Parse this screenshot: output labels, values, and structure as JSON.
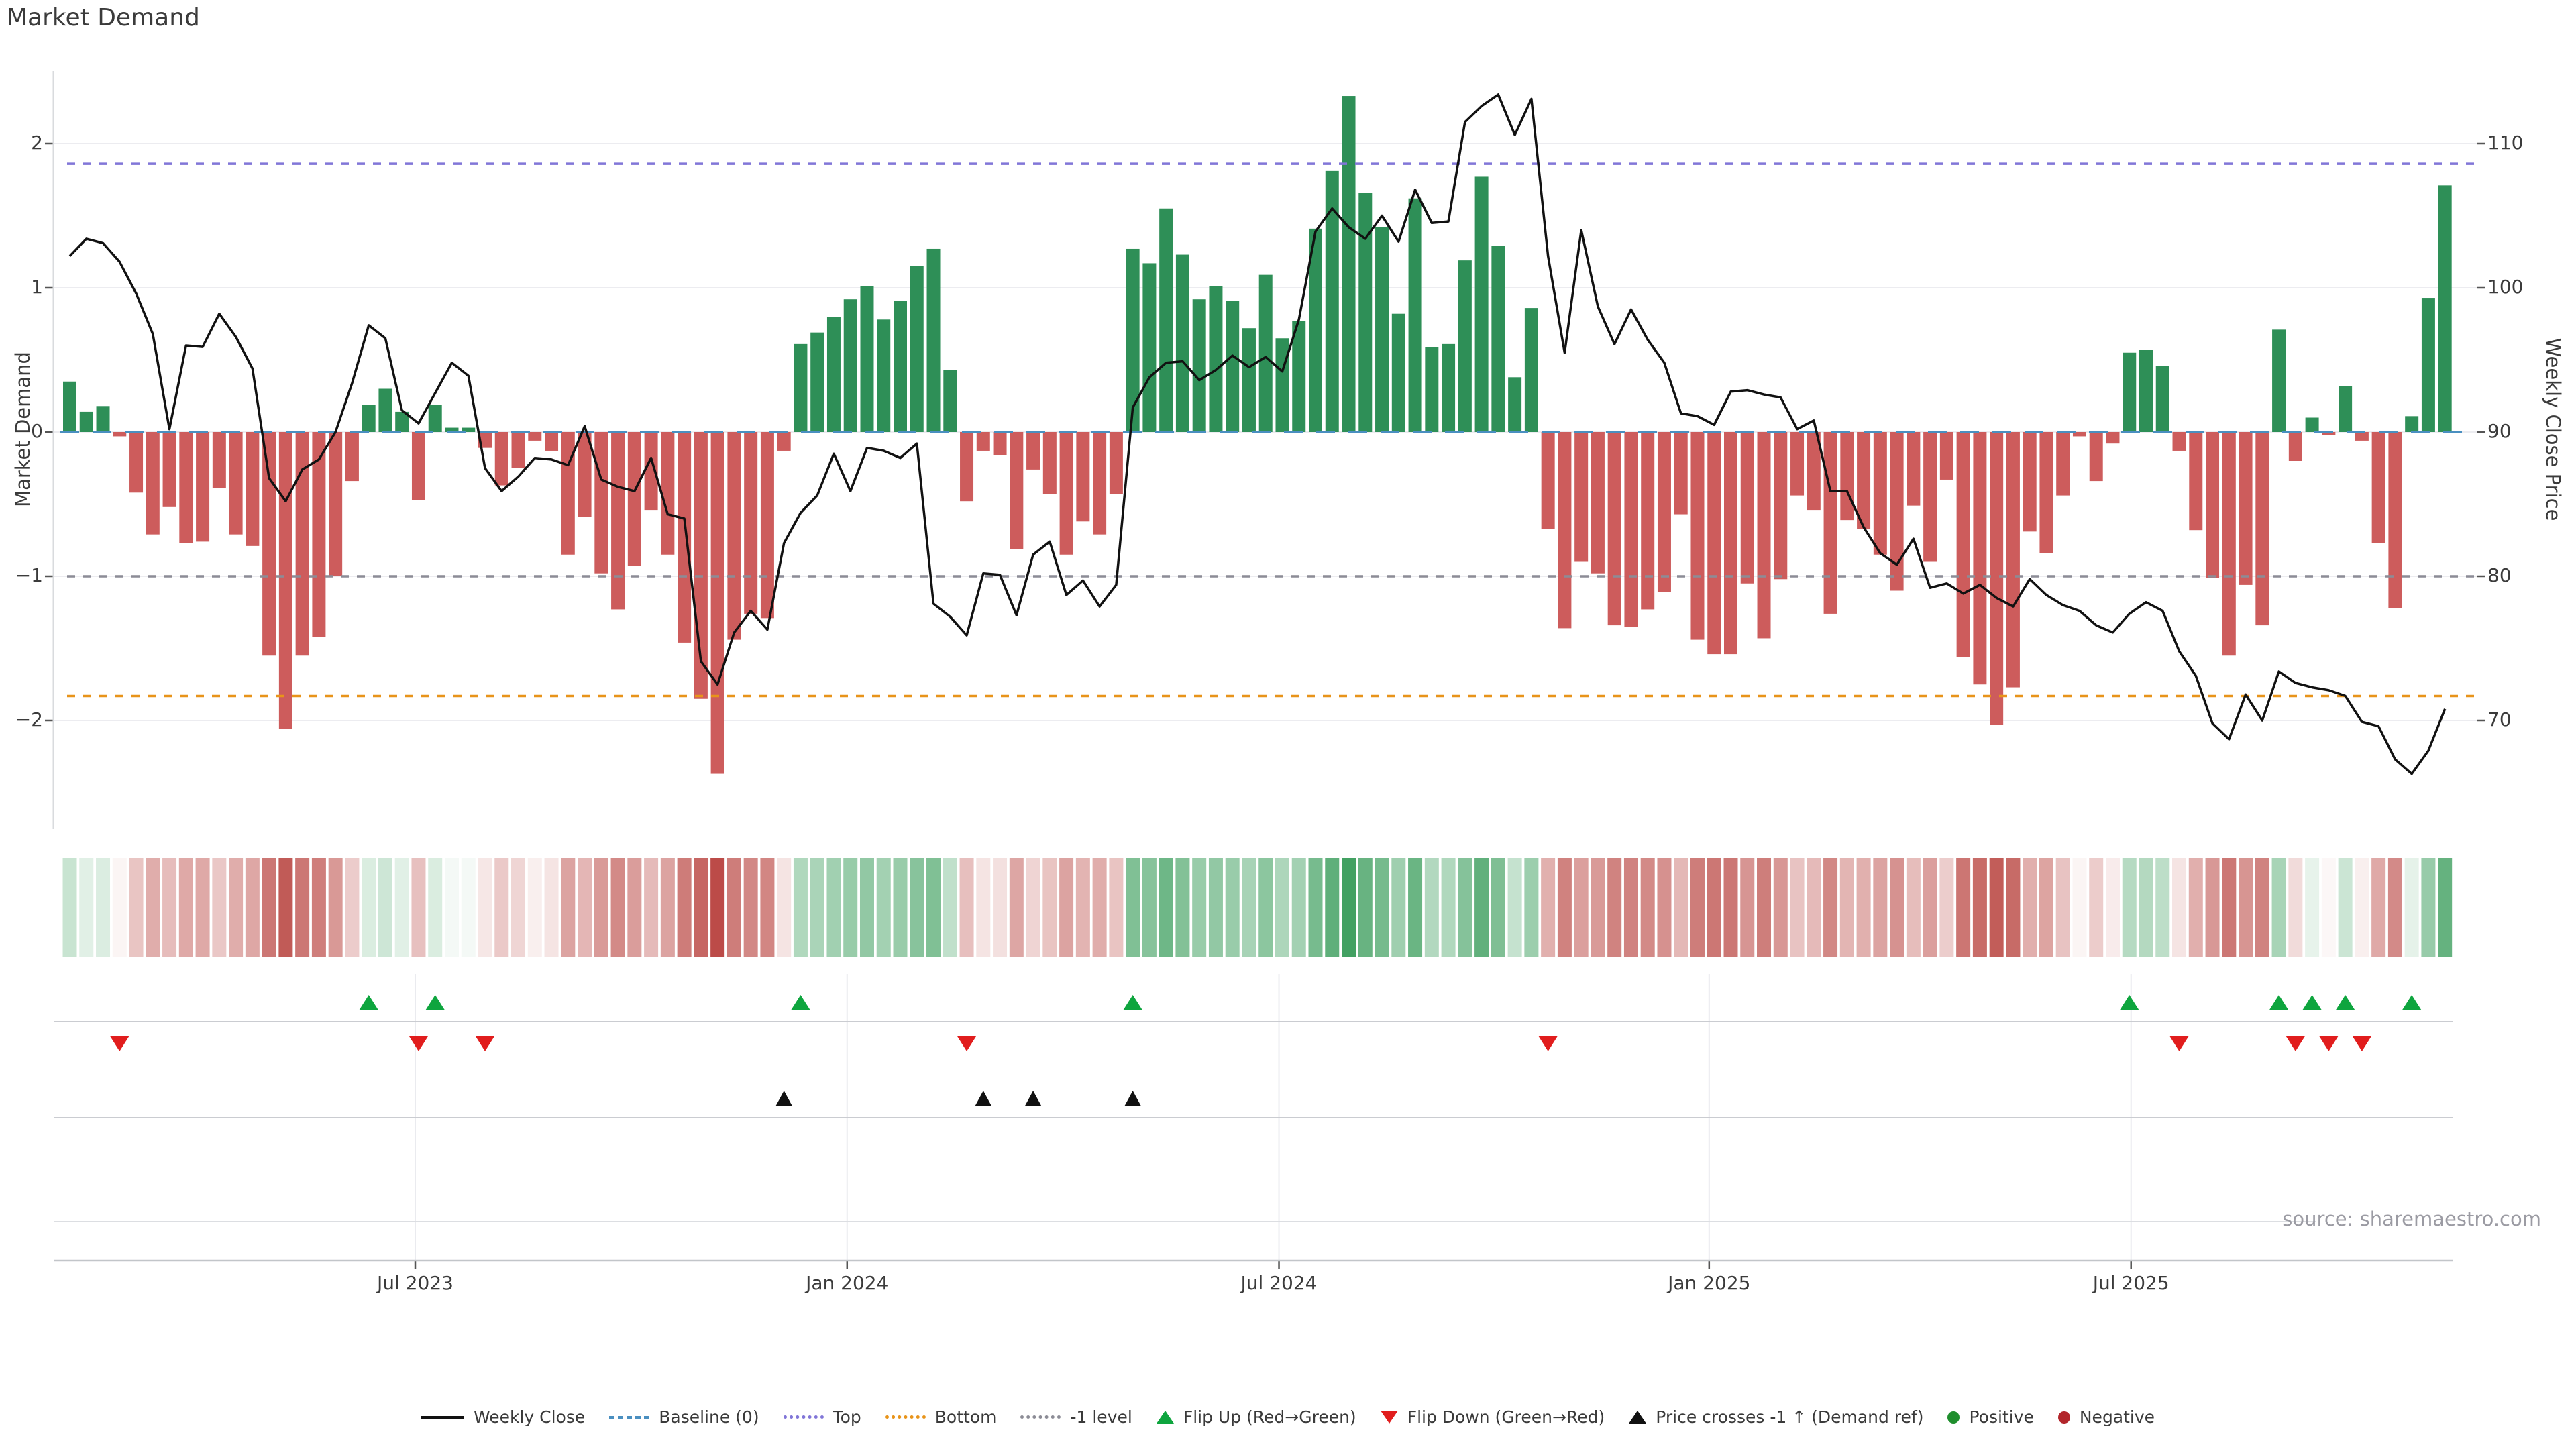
{
  "title": "Market Demand",
  "source": "source: sharemaestro.com",
  "axes": {
    "left": {
      "title": "Market Demand",
      "ticks": [
        "2",
        "1",
        "0",
        "−1",
        "−2"
      ],
      "tick_values": [
        2,
        1,
        0,
        -1,
        -2
      ]
    },
    "right": {
      "title": "Weekly Close Price",
      "ticks": [
        "110",
        "100",
        "90",
        "80",
        "70"
      ],
      "tick_values": [
        110,
        100,
        90,
        80,
        70
      ]
    },
    "x": {
      "ticks": [
        {
          "label": "Jul 2023",
          "week": 21.8
        },
        {
          "label": "Jan 2024",
          "week": 47.8
        },
        {
          "label": "Jul 2024",
          "week": 73.8
        },
        {
          "label": "Jan 2025",
          "week": 99.7
        },
        {
          "label": "Jul 2025",
          "week": 125.1
        }
      ]
    }
  },
  "legend": [
    {
      "label": "Weekly Close",
      "swatch": "line",
      "color": "#111111"
    },
    {
      "label": "Baseline (0)",
      "swatch": "dash",
      "color": "#4a8fc0"
    },
    {
      "label": "Top",
      "swatch": "dots",
      "color": "#8176d8"
    },
    {
      "label": "Bottom",
      "swatch": "dots",
      "color": "#e8941a"
    },
    {
      "label": "-1 level",
      "swatch": "dots",
      "color": "#8c8c96"
    },
    {
      "label": "Flip Up (Red→Green)",
      "swatch": "tri-up",
      "color": "#0ea53e"
    },
    {
      "label": "Flip Down (Green→Red)",
      "swatch": "tri-down",
      "color": "#e11d1d"
    },
    {
      "label": "Price crosses -1 ↑ (Demand ref)",
      "swatch": "tri-up",
      "color": "#111111"
    },
    {
      "label": "Positive",
      "swatch": "dot",
      "color": "#1f8e2d"
    },
    {
      "label": "Negative",
      "swatch": "dot",
      "color": "#b2252b"
    }
  ],
  "colors": {
    "bar_positive": "#2e8f57",
    "bar_negative": "#cd5c5c",
    "price_line": "#111111",
    "baseline": "#4a8fc0",
    "top_line": "#8176d8",
    "bottom_line": "#e8941a",
    "minus1_line": "#8c8c96",
    "flip_up": "#0ea53e",
    "flip_down": "#e11d1d",
    "price_cross": "#111111",
    "heat_green": "#3f9f5f",
    "heat_red": "#bb4a46",
    "grid": "#ececf0"
  },
  "chart_data": {
    "type": "bar+line",
    "title": "Market Demand",
    "ylabel_left": "Market Demand",
    "ylabel_right": "Weekly Close Price",
    "x_freq": "weekly",
    "start_date": "2023-02-06",
    "n_weeks": 144,
    "ylim_demand": [
      -2.7,
      2.5
    ],
    "ylim_price": [
      62.5,
      115
    ],
    "baseline": 0,
    "top_level": 1.86,
    "bottom_level": -1.83,
    "minus1_level": -1,
    "grid": "horizontal",
    "legend_position": "bottom-center",
    "demand": [
      0.35,
      0.14,
      0.18,
      -0.03,
      -0.42,
      -0.71,
      -0.52,
      -0.77,
      -0.76,
      -0.39,
      -0.71,
      -0.79,
      -1.55,
      -2.06,
      -1.55,
      -1.42,
      -1.0,
      -0.34,
      0.19,
      0.3,
      0.14,
      -0.47,
      0.19,
      0.03,
      0.03,
      -0.11,
      -0.37,
      -0.25,
      -0.06,
      -0.13,
      -0.85,
      -0.59,
      -0.98,
      -1.23,
      -0.93,
      -0.54,
      -0.85,
      -1.46,
      -1.85,
      -2.37,
      -1.44,
      -1.26,
      -1.29,
      -0.13,
      0.61,
      0.69,
      0.8,
      0.92,
      1.01,
      0.78,
      0.91,
      1.15,
      1.27,
      0.43,
      -0.48,
      -0.13,
      -0.16,
      -0.81,
      -0.26,
      -0.43,
      -0.85,
      -0.62,
      -0.71,
      -0.43,
      1.27,
      1.17,
      1.55,
      1.23,
      0.92,
      1.01,
      0.91,
      0.72,
      1.09,
      0.65,
      0.77,
      1.41,
      1.81,
      2.33,
      1.66,
      1.42,
      0.82,
      1.62,
      0.59,
      0.61,
      1.19,
      1.77,
      1.29,
      0.38,
      0.86,
      -0.67,
      -1.36,
      -0.9,
      -0.98,
      -1.34,
      -1.35,
      -1.23,
      -1.11,
      -0.57,
      -1.44,
      -1.54,
      -1.54,
      -1.05,
      -1.43,
      -1.02,
      -0.44,
      -0.54,
      -1.26,
      -0.61,
      -0.67,
      -0.85,
      -1.1,
      -0.51,
      -0.9,
      -0.33,
      -1.56,
      -1.75,
      -2.03,
      -1.77,
      -0.69,
      -0.84,
      -0.44,
      -0.03,
      -0.34,
      -0.08,
      0.55,
      0.57,
      0.46,
      -0.13,
      -0.68,
      -1.01,
      -1.55,
      -1.06,
      -1.34,
      0.71,
      -0.2,
      0.1,
      -0.02,
      0.32,
      -0.06,
      -0.77,
      -1.22,
      0.11,
      0.93,
      1.71
    ],
    "price": [
      102.2,
      103.4,
      103.1,
      101.8,
      99.6,
      96.8,
      90.2,
      96.0,
      95.9,
      98.2,
      96.6,
      94.4,
      86.8,
      85.2,
      87.4,
      88.1,
      90.0,
      93.4,
      97.4,
      96.5,
      91.5,
      90.6,
      92.7,
      94.8,
      93.9,
      87.5,
      85.9,
      86.9,
      88.2,
      88.1,
      87.7,
      90.4,
      86.7,
      86.2,
      85.9,
      88.2,
      84.3,
      84.0,
      74.1,
      72.5,
      76.1,
      77.6,
      76.3,
      82.3,
      84.4,
      85.6,
      88.5,
      85.9,
      88.9,
      88.7,
      88.2,
      89.2,
      78.1,
      77.2,
      75.9,
      80.2,
      80.1,
      77.3,
      81.5,
      82.4,
      78.7,
      79.7,
      77.9,
      79.4,
      91.7,
      93.8,
      94.8,
      94.9,
      93.6,
      94.3,
      95.3,
      94.5,
      95.2,
      94.2,
      97.8,
      103.9,
      105.5,
      104.2,
      103.4,
      105.0,
      103.2,
      106.8,
      104.5,
      104.6,
      111.5,
      112.6,
      113.4,
      110.6,
      113.1,
      102.2,
      95.5,
      104.0,
      98.7,
      96.1,
      98.5,
      96.4,
      94.8,
      91.3,
      91.1,
      90.5,
      92.8,
      92.9,
      92.6,
      92.4,
      90.2,
      90.8,
      85.9,
      85.9,
      83.4,
      81.6,
      80.8,
      82.6,
      79.2,
      79.5,
      78.8,
      79.4,
      78.5,
      77.9,
      79.8,
      78.7,
      78.0,
      77.6,
      76.6,
      76.1,
      77.4,
      78.2,
      77.6,
      74.8,
      73.1,
      69.8,
      68.7,
      71.8,
      70.0,
      73.4,
      72.6,
      72.3,
      72.1,
      71.7,
      69.9,
      69.6,
      67.3,
      66.3,
      67.9,
      70.8
    ],
    "flip_up_weeks": [
      19,
      23,
      45,
      65,
      125,
      134,
      136,
      138,
      142
    ],
    "flip_down_weeks": [
      4,
      22,
      26,
      55,
      90,
      128,
      135,
      137,
      139
    ],
    "price_cross_weeks": [
      44,
      56,
      59,
      65
    ],
    "heatmap": "demand values rendered as red-green intensity strip, one cell per week"
  }
}
